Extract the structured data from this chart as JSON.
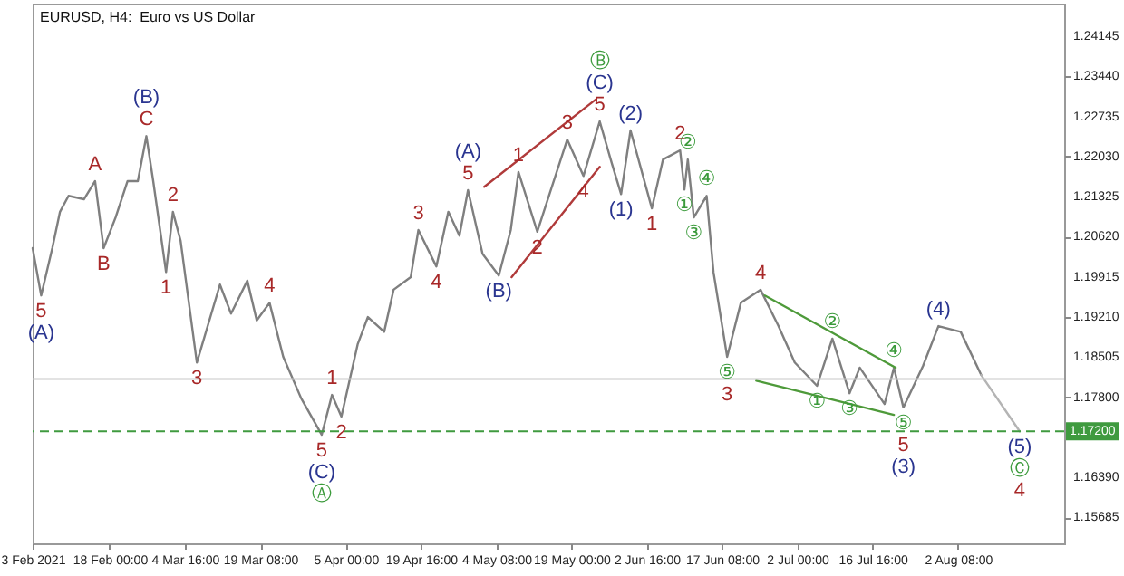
{
  "chart_data": {
    "type": "line",
    "title": "EURUSD, H4:  Euro vs US Dollar",
    "xlim": [
      "2021-02-03T00:00",
      "2021-08-23T00:00"
    ],
    "ylim": [
      1.1523,
      1.2472
    ],
    "xticks": [
      {
        "value": "2021-02-03T00:00",
        "label": "3 Feb 2021"
      },
      {
        "value": "2021-02-18T00:00",
        "label": "18 Feb 00:00"
      },
      {
        "value": "2021-03-04T16:00",
        "label": "4 Mar 16:00"
      },
      {
        "value": "2021-03-19T08:00",
        "label": "19 Mar 08:00"
      },
      {
        "value": "2021-04-05T00:00",
        "label": "5 Apr 00:00"
      },
      {
        "value": "2021-04-19T16:00",
        "label": "19 Apr 16:00"
      },
      {
        "value": "2021-05-04T08:00",
        "label": "4 May 08:00"
      },
      {
        "value": "2021-05-19T00:00",
        "label": "19 May 00:00"
      },
      {
        "value": "2021-06-02T16:00",
        "label": "2 Jun 16:00"
      },
      {
        "value": "2021-06-17T08:00",
        "label": "17 Jun 08:00"
      },
      {
        "value": "2021-07-02T00:00",
        "label": "2 Jul 00:00"
      },
      {
        "value": "2021-07-16T16:00",
        "label": "16 Jul 16:00"
      },
      {
        "value": "2021-08-02T08:00",
        "label": "2 Aug 08:00"
      }
    ],
    "yticks": [
      {
        "value": 1.24145,
        "label": "1.24145"
      },
      {
        "value": 1.2344,
        "label": "1.23440"
      },
      {
        "value": 1.22735,
        "label": "1.22735"
      },
      {
        "value": 1.2203,
        "label": "1.22030"
      },
      {
        "value": 1.21325,
        "label": "1.21325"
      },
      {
        "value": 1.2062,
        "label": "1.20620"
      },
      {
        "value": 1.19915,
        "label": "1.19915"
      },
      {
        "value": 1.1921,
        "label": "1.19210"
      },
      {
        "value": 1.18505,
        "label": "1.18505"
      },
      {
        "value": 1.178,
        "label": "1.17800"
      },
      {
        "value": 1.1639,
        "label": "1.16390"
      },
      {
        "value": 1.15685,
        "label": "1.15685"
      }
    ],
    "marker": "none",
    "series": [
      {
        "color": "#7f7f7f",
        "x": [
          "2021-02-03T00:00",
          "2021-02-04T16:00",
          "2021-02-06T20:00",
          "2021-02-08T08:00",
          "2021-02-10T00:00",
          "2021-02-13T00:00",
          "2021-02-15T04:00",
          "2021-02-16T20:00",
          "2021-02-19T04:00",
          "2021-02-21T12:00",
          "2021-02-23T12:00",
          "2021-02-25T04:00",
          "2021-02-26T12:00",
          "2021-03-01T00:00",
          "2021-03-02T08:00",
          "2021-03-03T20:00",
          "2021-03-07T00:00",
          "2021-03-11T12:00",
          "2021-03-13T16:00",
          "2021-03-16T20:00",
          "2021-03-18T16:00",
          "2021-03-21T04:00",
          "2021-03-23T20:00",
          "2021-03-27T08:00",
          "2021-03-31T08:00",
          "2021-04-02T08:00",
          "2021-04-04T04:00",
          "2021-04-07T08:00",
          "2021-04-09T08:00",
          "2021-04-12T12:00",
          "2021-04-14T08:00",
          "2021-04-17T16:00",
          "2021-04-19T04:00",
          "2021-04-22T16:00",
          "2021-04-25T00:00",
          "2021-04-27T04:00",
          "2021-04-28T20:00",
          "2021-05-01T16:00",
          "2021-05-04T20:00",
          "2021-05-07T04:00",
          "2021-05-08T16:00",
          "2021-05-12T08:00",
          "2021-05-18T04:00",
          "2021-05-21T08:00",
          "2021-05-24T12:00",
          "2021-05-26T20:00",
          "2021-05-28T16:00",
          "2021-05-30T12:00",
          "2021-06-03T16:00",
          "2021-06-05T20:00",
          "2021-06-09T04:00",
          "2021-06-10T00:00",
          "2021-06-10T16:00",
          "2021-06-11T20:00",
          "2021-06-14T08:00",
          "2021-06-15T16:00",
          "2021-06-18T08:00",
          "2021-06-21T00:00",
          "2021-06-24T20:00",
          "2021-06-28T08:00",
          "2021-07-01T12:00",
          "2021-07-05T20:00",
          "2021-07-08T20:00",
          "2021-07-12T04:00",
          "2021-07-14T04:00",
          "2021-07-19T00:00",
          "2021-07-20T20:00",
          "2021-07-22T16:00",
          "2021-07-26T12:00",
          "2021-07-29T12:00",
          "2021-08-02T20:00",
          "2021-08-06T20:00"
        ],
        "values": [
          1.2042,
          1.1959,
          1.2042,
          1.2106,
          1.2134,
          1.2128,
          1.216,
          1.2042,
          1.2096,
          1.216,
          1.216,
          1.2239,
          1.216,
          1.2,
          1.2106,
          1.2055,
          1.1841,
          1.1978,
          1.1927,
          1.1985,
          1.1915,
          1.1946,
          1.1851,
          1.1778,
          1.1714,
          1.1784,
          1.1746,
          1.1873,
          1.1921,
          1.1895,
          1.1969,
          1.1991,
          1.2074,
          1.201,
          1.2106,
          1.2064,
          1.2144,
          1.2032,
          1.1994,
          1.2074,
          1.2176,
          1.2071,
          1.2233,
          1.2169,
          1.2265,
          1.2192,
          1.2137,
          1.2249,
          1.2112,
          1.2198,
          1.2214,
          1.2145,
          1.2198,
          1.2096,
          1.2134,
          1.2,
          1.1851,
          1.1946,
          1.1969,
          1.1905,
          1.1841,
          1.18,
          1.1883,
          1.1787,
          1.1832,
          1.1768,
          1.1832,
          1.1762,
          1.1835,
          1.1905,
          1.1895,
          1.1819
        ]
      },
      {
        "color": "#b4b4b4",
        "x": [
          "2021-08-06T20:00",
          "2021-08-14T08:00"
        ],
        "values": [
          1.1819,
          1.172
        ]
      },
      {
        "color": "#b03a3a",
        "x": [
          "2021-05-02T00:00",
          "2021-05-23T16:00"
        ],
        "values": [
          1.215,
          1.2303
        ]
      },
      {
        "color": "#b03a3a",
        "x": [
          "2021-05-07T08:00",
          "2021-05-24T12:00"
        ],
        "values": [
          1.1991,
          1.2185
        ]
      },
      {
        "color": "#4e9a3a",
        "x": [
          "2021-06-25T16:00",
          "2021-07-21T04:00"
        ],
        "values": [
          1.1959,
          1.1832
        ]
      },
      {
        "color": "#4e9a3a",
        "x": [
          "2021-06-24T00:00",
          "2021-07-20T20:00"
        ],
        "values": [
          1.1809,
          1.1749
        ]
      }
    ],
    "ref_lines": [
      {
        "axis": "y",
        "value": 1.172,
        "label": "1.17200",
        "color": "#3f9a3f",
        "line_style": "dashed"
      },
      {
        "axis": "y",
        "value": 1.1812,
        "color": "#c8c8c8",
        "line_style": "solid"
      }
    ],
    "annotations": [
      {
        "text": "5",
        "x": "2021-02-04T16:00",
        "y": 1.1959
      },
      {
        "text": "(A)",
        "x": "2021-02-04T16:00",
        "y": 1.1959
      },
      {
        "text": "A",
        "x": "2021-02-15T04:00",
        "y": 1.216
      },
      {
        "text": "B",
        "x": "2021-02-16T20:00",
        "y": 1.2042
      },
      {
        "text": "C",
        "x": "2021-02-25T04:00",
        "y": 1.2239
      },
      {
        "text": "(B)",
        "x": "2021-02-25T04:00",
        "y": 1.2239
      },
      {
        "text": "2",
        "x": "2021-03-02T08:00",
        "y": 1.2106
      },
      {
        "text": "1",
        "x": "2021-03-01T00:00",
        "y": 1.2
      },
      {
        "text": "3",
        "x": "2021-03-07T00:00",
        "y": 1.1841
      },
      {
        "text": "4",
        "x": "2021-03-21T04:00",
        "y": 1.1946
      },
      {
        "text": "1",
        "x": "2021-04-02T08:00",
        "y": 1.1784
      },
      {
        "text": "2",
        "x": "2021-04-04T04:00",
        "y": 1.1746
      },
      {
        "text": "5",
        "x": "2021-03-31T08:00",
        "y": 1.1714
      },
      {
        "text": "(C)",
        "x": "2021-03-31T08:00",
        "y": 1.1714
      },
      {
        "text": "Ⓐ",
        "x": "2021-03-31T08:00",
        "y": 1.1714
      },
      {
        "text": "3",
        "x": "2021-04-19T04:00",
        "y": 1.2074
      },
      {
        "text": "4",
        "x": "2021-04-22T16:00",
        "y": 1.201
      },
      {
        "text": "5",
        "x": "2021-04-28T20:00",
        "y": 1.2144
      },
      {
        "text": "(A)",
        "x": "2021-04-28T20:00",
        "y": 1.2144
      },
      {
        "text": "(B)",
        "x": "2021-05-04T20:00",
        "y": 1.1994
      },
      {
        "text": "1",
        "x": "2021-05-08T16:00",
        "y": 1.2176
      },
      {
        "text": "2",
        "x": "2021-05-12T08:00",
        "y": 1.2071
      },
      {
        "text": "3",
        "x": "2021-05-18T04:00",
        "y": 1.2233
      },
      {
        "text": "4",
        "x": "2021-05-21T08:00",
        "y": 1.2169
      },
      {
        "text": "5",
        "x": "2021-05-24T12:00",
        "y": 1.2265
      },
      {
        "text": "(C)",
        "x": "2021-05-24T12:00",
        "y": 1.2265
      },
      {
        "text": "Ⓑ",
        "x": "2021-05-24T12:00",
        "y": 1.2265
      },
      {
        "text": "(2)",
        "x": "2021-05-30T12:00",
        "y": 1.2249
      },
      {
        "text": "(1)",
        "x": "2021-05-28T16:00",
        "y": 1.2137
      },
      {
        "text": "1",
        "x": "2021-06-03T16:00",
        "y": 1.2112
      },
      {
        "text": "2",
        "x": "2021-06-09T04:00",
        "y": 1.2214
      },
      {
        "text": "①",
        "x": "2021-06-10T00:00",
        "y": 1.2145
      },
      {
        "text": "②",
        "x": "2021-06-10T16:00",
        "y": 1.2198
      },
      {
        "text": "③",
        "x": "2021-06-11T20:00",
        "y": 1.2096
      },
      {
        "text": "④",
        "x": "2021-06-14T08:00",
        "y": 1.2134
      },
      {
        "text": "⑤",
        "x": "2021-06-18T08:00",
        "y": 1.1851
      },
      {
        "text": "3",
        "x": "2021-06-18T08:00",
        "y": 1.1851
      },
      {
        "text": "4",
        "x": "2021-06-24T20:00",
        "y": 1.1969
      },
      {
        "text": "①",
        "x": "2021-07-05T20:00",
        "y": 1.18
      },
      {
        "text": "②",
        "x": "2021-07-08T20:00",
        "y": 1.1883
      },
      {
        "text": "③",
        "x": "2021-07-12T04:00",
        "y": 1.1787
      },
      {
        "text": "④",
        "x": "2021-07-20T20:00",
        "y": 1.1832
      },
      {
        "text": "⑤",
        "x": "2021-07-22T16:00",
        "y": 1.1762
      },
      {
        "text": "5",
        "x": "2021-07-22T16:00",
        "y": 1.1762
      },
      {
        "text": "(3)",
        "x": "2021-07-22T16:00",
        "y": 1.1762
      },
      {
        "text": "(4)",
        "x": "2021-07-29T12:00",
        "y": 1.1905
      },
      {
        "text": "(5)",
        "x": "2021-08-14T08:00",
        "y": 1.172
      },
      {
        "text": "Ⓒ",
        "x": "2021-08-14T08:00",
        "y": 1.172
      },
      {
        "text": "4",
        "x": "2021-08-14T08:00",
        "y": 1.172
      }
    ]
  }
}
